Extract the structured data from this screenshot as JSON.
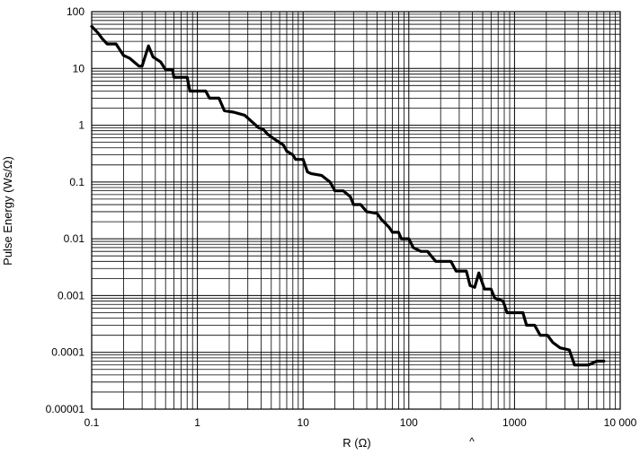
{
  "chart_data": {
    "type": "line",
    "title": "",
    "xlabel": "R (Ω)",
    "ylabel": "Pulse Energy (Ws/Ω)",
    "x_scale": "log",
    "y_scale": "log",
    "xlim": [
      0.1,
      10000
    ],
    "ylim": [
      1e-05,
      100
    ],
    "x_tick_labels": [
      "0.1",
      "1",
      "10",
      "100",
      "1000",
      "10 000"
    ],
    "y_tick_labels": [
      "100",
      "10",
      "1",
      "0.1",
      "0.01",
      "0.001",
      "0.0001",
      "0.00001"
    ],
    "grid": true,
    "stray_mark": "^",
    "series": [
      {
        "values": [
          [
            0.1,
            55
          ],
          [
            0.115,
            42
          ],
          [
            0.125,
            34
          ],
          [
            0.14,
            27
          ],
          [
            0.17,
            27
          ],
          [
            0.2,
            17
          ],
          [
            0.23,
            15
          ],
          [
            0.28,
            11
          ],
          [
            0.3,
            11
          ],
          [
            0.345,
            25
          ],
          [
            0.38,
            16
          ],
          [
            0.45,
            13
          ],
          [
            0.5,
            9.5
          ],
          [
            0.58,
            9.5
          ],
          [
            0.6,
            7
          ],
          [
            0.8,
            7
          ],
          [
            0.85,
            4
          ],
          [
            1.2,
            4
          ],
          [
            1.3,
            3
          ],
          [
            1.6,
            3
          ],
          [
            1.8,
            1.8
          ],
          [
            2.2,
            1.7
          ],
          [
            2.8,
            1.5
          ],
          [
            3.2,
            1.2
          ],
          [
            3.8,
            0.9
          ],
          [
            4.2,
            0.85
          ],
          [
            4.6,
            0.7
          ],
          [
            5.5,
            0.55
          ],
          [
            6.5,
            0.45
          ],
          [
            7,
            0.35
          ],
          [
            8,
            0.3
          ],
          [
            8.5,
            0.25
          ],
          [
            10,
            0.25
          ],
          [
            11,
            0.15
          ],
          [
            12,
            0.14
          ],
          [
            15,
            0.13
          ],
          [
            18,
            0.1
          ],
          [
            20,
            0.07
          ],
          [
            24,
            0.07
          ],
          [
            28,
            0.055
          ],
          [
            30,
            0.04
          ],
          [
            35,
            0.04
          ],
          [
            40,
            0.03
          ],
          [
            50,
            0.028
          ],
          [
            55,
            0.022
          ],
          [
            65,
            0.016
          ],
          [
            70,
            0.013
          ],
          [
            80,
            0.013
          ],
          [
            85,
            0.01
          ],
          [
            100,
            0.01
          ],
          [
            110,
            0.007
          ],
          [
            130,
            0.006
          ],
          [
            150,
            0.006
          ],
          [
            180,
            0.004
          ],
          [
            250,
            0.004
          ],
          [
            280,
            0.0027
          ],
          [
            350,
            0.0027
          ],
          [
            380,
            0.0015
          ],
          [
            420,
            0.0014
          ],
          [
            460,
            0.0025
          ],
          [
            520,
            0.0013
          ],
          [
            600,
            0.0013
          ],
          [
            650,
            0.0009
          ],
          [
            780,
            0.0008
          ],
          [
            850,
            0.0005
          ],
          [
            1200,
            0.0005
          ],
          [
            1300,
            0.0003
          ],
          [
            1550,
            0.0003
          ],
          [
            1750,
            0.0002
          ],
          [
            2050,
            0.0002
          ],
          [
            2300,
            0.00015
          ],
          [
            2700,
            0.00012
          ],
          [
            3300,
            0.00011
          ],
          [
            3700,
            6e-05
          ],
          [
            5000,
            6e-05
          ],
          [
            6000,
            7e-05
          ],
          [
            7000,
            7e-05
          ]
        ]
      }
    ]
  }
}
